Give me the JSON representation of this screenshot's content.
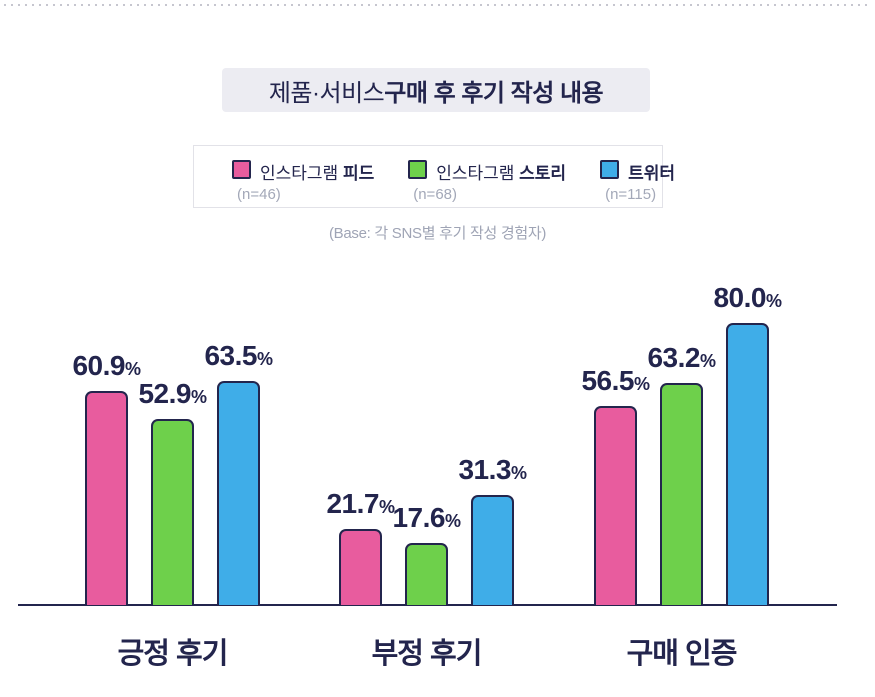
{
  "title": {
    "normal": "제품·서비스 ",
    "bold": "구매 후 후기 작성 내용"
  },
  "base_note": "(Base: 각 SNS별 후기 작성 경험자)",
  "colors": {
    "navy_outline": "#23254D",
    "pink": "#E85C9E",
    "green": "#6ED04B",
    "blue": "#3FADE8",
    "title_box_bg": "#ECECF2",
    "muted_gray": "#9FA4B5"
  },
  "chart_data": {
    "type": "bar",
    "title": "제품·서비스 구매 후 후기 작성 내용",
    "categories": [
      "긍정 후기",
      "부정 후기",
      "구매 인증"
    ],
    "series": [
      {
        "name_normal": "인스타그램 ",
        "name_bold": "피드",
        "n_label": "(n=46)",
        "color": "#E85C9E",
        "values": [
          60.9,
          21.7,
          56.5
        ]
      },
      {
        "name_normal": "인스타그램 ",
        "name_bold": "스토리",
        "n_label": "(n=68)",
        "color": "#6ED04B",
        "values": [
          52.9,
          17.6,
          63.2
        ]
      },
      {
        "name_normal": "",
        "name_bold": "트위터",
        "n_label": "(n=115)",
        "color": "#3FADE8",
        "values": [
          63.5,
          31.3,
          80.0
        ]
      }
    ],
    "value_suffix": "%",
    "ylim": [
      0,
      85
    ],
    "grid": false,
    "legend_position": "top",
    "base_note": "(Base: 각 SNS별 후기 작성 경험자)"
  }
}
